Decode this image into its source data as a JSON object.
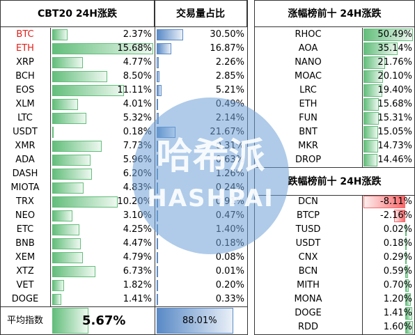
{
  "left": {
    "headers": [
      "CBT20 24H涨跌",
      "交易量占比"
    ],
    "rows": [
      [
        "BTC",
        "2.37%",
        "30.50%"
      ],
      [
        "ETH",
        "15.68%",
        "16.87%"
      ],
      [
        "XRP",
        "4.77%",
        "2.26%"
      ],
      [
        "BCH",
        "8.50%",
        "2.85%"
      ],
      [
        "EOS",
        "11.11%",
        "5.21%"
      ],
      [
        "XLM",
        "4.01%",
        "0.49%"
      ],
      [
        "LTC",
        "5.32%",
        "2.14%"
      ],
      [
        "USDT",
        "0.18%",
        "21.67%"
      ],
      [
        "XMR",
        "7.73%",
        "0.31%"
      ],
      [
        "ADA",
        "5.96%",
        "0.63%"
      ],
      [
        "DASH",
        "6.20%",
        "1.26%"
      ],
      [
        "MIOTA",
        "4.83%",
        "0.24%"
      ],
      [
        "TRX",
        "10.20%",
        "0.91%"
      ],
      [
        "NEO",
        "3.10%",
        "0.47%"
      ],
      [
        "ETC",
        "4.25%",
        "1.40%"
      ],
      [
        "BNB",
        "4.47%",
        "0.18%"
      ],
      [
        "XEM",
        "4.79%",
        "0.08%"
      ],
      [
        "XTZ",
        "6.73%",
        "0.01%"
      ],
      [
        "VET",
        "1.82%",
        "0.20%"
      ],
      [
        "DOGE",
        "1.41%",
        "0.33%"
      ]
    ],
    "footer": [
      "平均指数",
      "5.67%",
      "88.01%"
    ]
  },
  "gainers": {
    "title": "涨幅榜前十 24H涨跌",
    "rows": [
      [
        "RHOC",
        "50.49%"
      ],
      [
        "AOA",
        "35.14%"
      ],
      [
        "NANO",
        "21.76%"
      ],
      [
        "MOAC",
        "20.10%"
      ],
      [
        "LRC",
        "19.40%"
      ],
      [
        "ETH",
        "15.68%"
      ],
      [
        "FUN",
        "15.31%"
      ],
      [
        "BNT",
        "15.05%"
      ],
      [
        "MKR",
        "14.73%"
      ],
      [
        "DROP",
        "14.46%"
      ]
    ]
  },
  "losers": {
    "title": "跌幅榜前十 24H涨跌",
    "rows": [
      [
        "DCN",
        "-8.11%"
      ],
      [
        "BTCP",
        "-2.16%"
      ],
      [
        "TUSD",
        "0.02%"
      ],
      [
        "USDT",
        "0.18%"
      ],
      [
        "CNX",
        "0.29%"
      ],
      [
        "BCN",
        "0.59%"
      ],
      [
        "MITH",
        "0.70%"
      ],
      [
        "MONA",
        "1.20%"
      ],
      [
        "DOGE",
        "1.41%"
      ],
      [
        "RDD",
        "1.60%"
      ]
    ]
  },
  "watermark": [
    "哈希派",
    "HASHPAI"
  ]
}
